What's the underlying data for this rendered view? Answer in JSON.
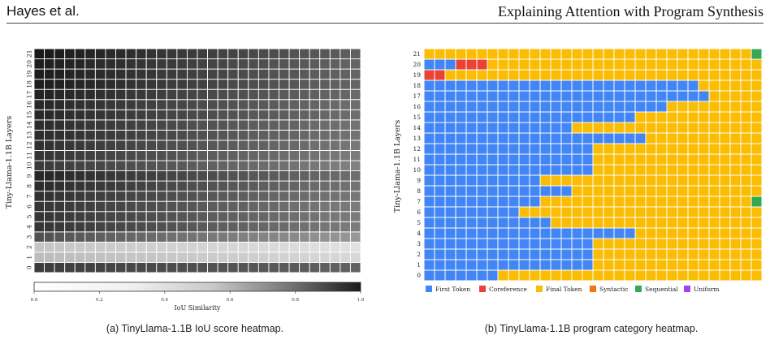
{
  "header": {
    "authors": "Hayes et al.",
    "running_title": "Explaining Attention with Program Synthesis"
  },
  "figure_a": {
    "ylabel": "Tiny-Llama-1.1B Layers",
    "colorbar_label": "IoU Similarity",
    "colorbar_ticks": [
      "0.0",
      "0.2",
      "0.4",
      "0.6",
      "0.8",
      "1.0"
    ],
    "caption": "(a) TinyLlama-1.1B IoU score heatmap."
  },
  "figure_b": {
    "ylabel": "Tiny-Llama-1.1B Layers",
    "legend": [
      {
        "label": "First Token",
        "color": "#4285F4"
      },
      {
        "label": "Coreference",
        "color": "#EA4335"
      },
      {
        "label": "Final Token",
        "color": "#FBBC04"
      },
      {
        "label": "Syntactic",
        "color": "#F4770B"
      },
      {
        "label": "Sequential",
        "color": "#34A853"
      },
      {
        "label": "Uniform",
        "color": "#A142F4"
      }
    ],
    "caption": "(b) TinyLlama-1.1B program category heatmap."
  },
  "chart_data": [
    {
      "type": "heatmap",
      "title": "",
      "ylabel": "Tiny-Llama-1.1B Layers",
      "y_categories": [
        "0",
        "1",
        "2",
        "3",
        "4",
        "5",
        "6",
        "7",
        "8",
        "9",
        "10",
        "11",
        "12",
        "13",
        "14",
        "15",
        "16",
        "17",
        "18",
        "19",
        "20",
        "21"
      ],
      "num_heads": 32,
      "colorbar": {
        "label": "IoU Similarity",
        "range": [
          0,
          1
        ],
        "cmap": "Greys"
      },
      "approx_mean_iou_by_layer": [
        0.72,
        0.22,
        0.18,
        0.62,
        0.74,
        0.74,
        0.74,
        0.76,
        0.78,
        0.8,
        0.72,
        0.74,
        0.76,
        0.78,
        0.78,
        0.8,
        0.8,
        0.82,
        0.84,
        0.84,
        0.84,
        0.86
      ]
    },
    {
      "type": "heatmap",
      "title": "",
      "ylabel": "Tiny-Llama-1.1B Layers",
      "y_categories": [
        "0",
        "1",
        "2",
        "3",
        "4",
        "5",
        "6",
        "7",
        "8",
        "9",
        "10",
        "11",
        "12",
        "13",
        "14",
        "15",
        "16",
        "17",
        "18",
        "19",
        "20",
        "21"
      ],
      "num_heads": 32,
      "categories": [
        "First Token",
        "Coreference",
        "Final Token",
        "Syntactic",
        "Sequential",
        "Uniform"
      ],
      "rows": [
        {
          "layer": 0,
          "first_token_heads": 7
        },
        {
          "layer": 1,
          "first_token_heads": 16
        },
        {
          "layer": 2,
          "first_token_heads": 16
        },
        {
          "layer": 3,
          "first_token_heads": 16
        },
        {
          "layer": 4,
          "first_token_heads": 20
        },
        {
          "layer": 5,
          "first_token_heads": 12
        },
        {
          "layer": 6,
          "first_token_heads": 9
        },
        {
          "layer": 7,
          "first_token_heads": 11,
          "sequential_heads": [
            31
          ]
        },
        {
          "layer": 8,
          "first_token_heads": 14
        },
        {
          "layer": 9,
          "first_token_heads": 11
        },
        {
          "layer": 10,
          "first_token_heads": 16
        },
        {
          "layer": 11,
          "first_token_heads": 16
        },
        {
          "layer": 12,
          "first_token_heads": 16
        },
        {
          "layer": 13,
          "first_token_heads": 21
        },
        {
          "layer": 14,
          "first_token_heads": 14
        },
        {
          "layer": 15,
          "first_token_heads": 20
        },
        {
          "layer": 16,
          "first_token_heads": 23
        },
        {
          "layer": 17,
          "first_token_heads": 27
        },
        {
          "layer": 18,
          "first_token_heads": 26
        },
        {
          "layer": 19,
          "first_token_heads": 0,
          "coreference_heads": [
            0,
            1
          ]
        },
        {
          "layer": 20,
          "first_token_heads": 3,
          "coreference_heads": [
            3,
            4,
            5
          ]
        },
        {
          "layer": 21,
          "first_token_heads": 0,
          "sequential_heads": [
            31
          ]
        }
      ]
    }
  ]
}
